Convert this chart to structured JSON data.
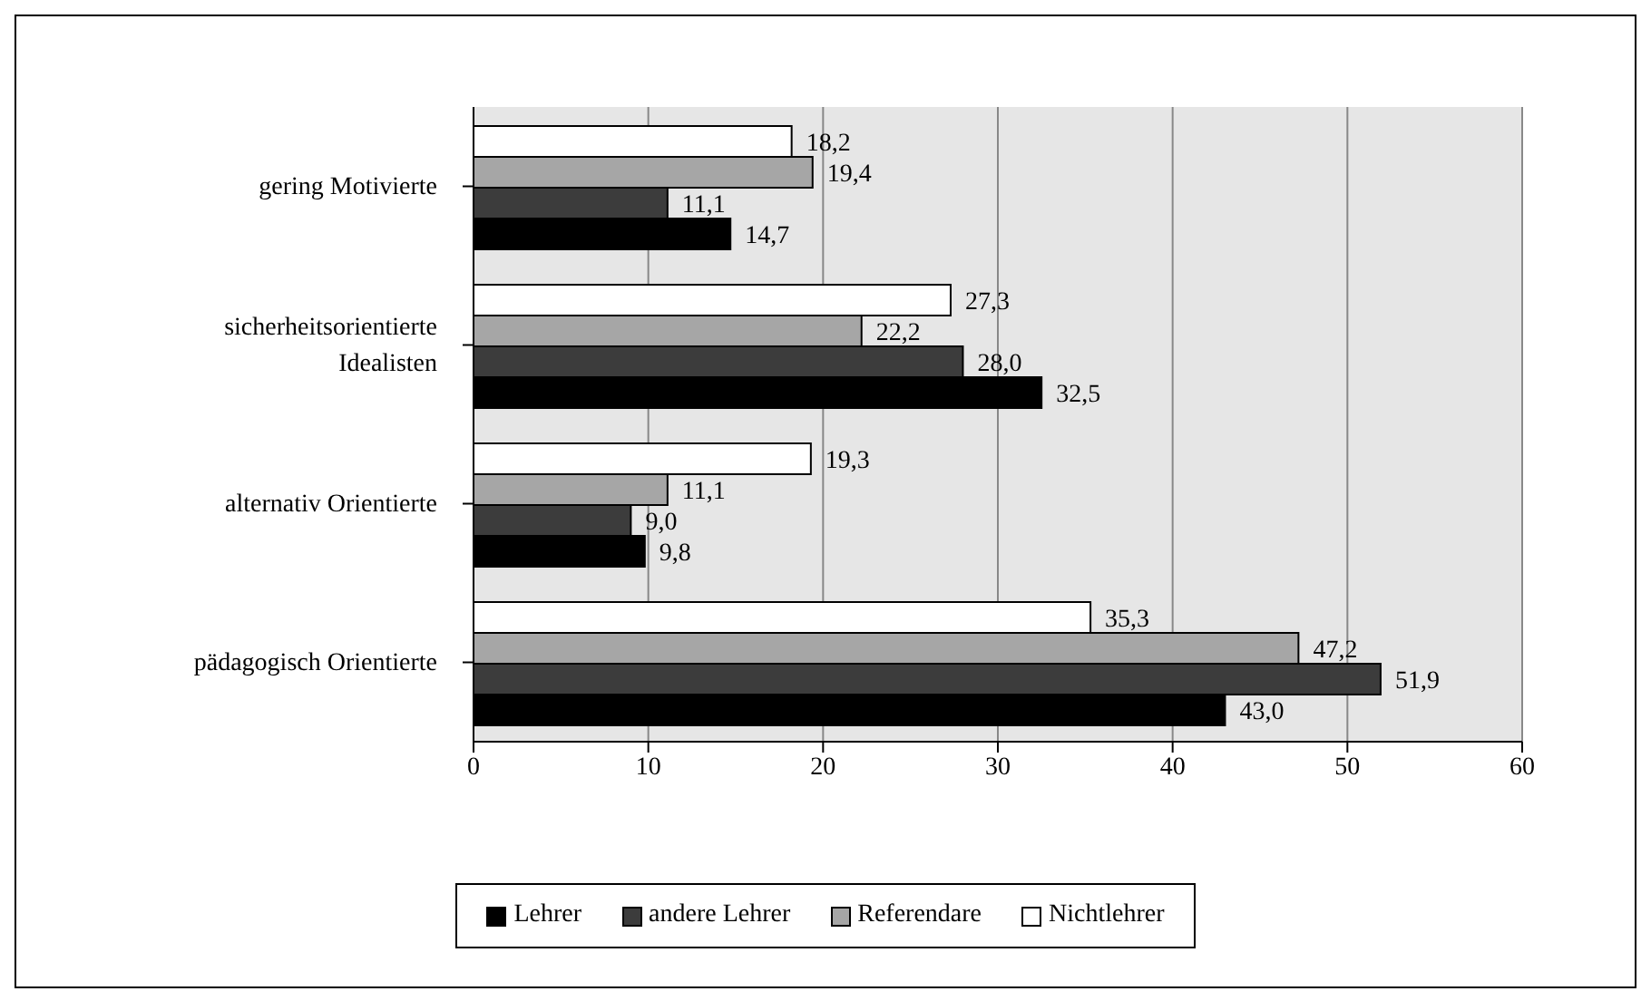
{
  "chart_data": {
    "type": "bar",
    "orientation": "horizontal",
    "categories": [
      "gering Motivierte",
      "sicherheitsorientierte Idealisten",
      "alternativ Orientierte",
      "pädagogisch Orientierte"
    ],
    "series": [
      {
        "name": "Lehrer",
        "color": "#000000",
        "values": [
          14.7,
          32.5,
          9.8,
          43.0
        ],
        "value_labels": [
          "14,7",
          "32,5",
          "9,8",
          "43,0"
        ]
      },
      {
        "name": "andere Lehrer",
        "color": "#3c3c3c",
        "values": [
          11.1,
          28.0,
          9.0,
          51.9
        ],
        "value_labels": [
          "11,1",
          "28,0",
          "9,0",
          "51,9"
        ]
      },
      {
        "name": "Referendare",
        "color": "#a6a6a6",
        "values": [
          19.4,
          22.2,
          11.1,
          47.2
        ],
        "value_labels": [
          "19,4",
          "22,2",
          "11,1",
          "47,2"
        ]
      },
      {
        "name": "Nichtlehrer",
        "color": "#ffffff",
        "values": [
          18.2,
          27.3,
          19.3,
          35.3
        ],
        "value_labels": [
          "18,2",
          "27,3",
          "19,3",
          "35,3"
        ]
      }
    ],
    "xlim": [
      0,
      60
    ],
    "xticks": [
      0,
      10,
      20,
      30,
      40,
      50,
      60
    ],
    "grid": "x",
    "legend": "bottom"
  }
}
